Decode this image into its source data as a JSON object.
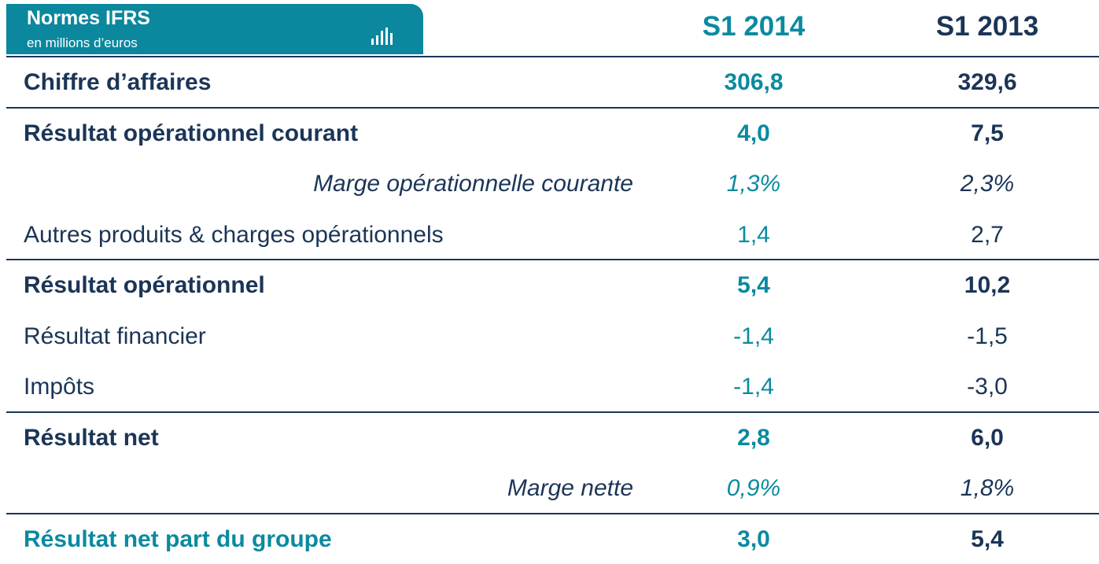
{
  "header": {
    "title": "Normes IFRS",
    "subtitle": "en millions d’euros",
    "columns": [
      "S1 2014",
      "S1 2013"
    ]
  },
  "table": {
    "rows": [
      [
        "Chiffre d’affaires",
        "306,8",
        "329,6"
      ],
      [
        "Résultat opérationnel courant",
        "4,0",
        "7,5"
      ],
      [
        "Marge opérationnelle courante",
        "1,3%",
        "2,3%"
      ],
      [
        "Autres produits & charges opérationnels",
        "1,4",
        "2,7"
      ],
      [
        "Résultat opérationnel",
        "5,4",
        "10,2"
      ],
      [
        "Résultat financier",
        "-1,4",
        "-1,5"
      ],
      [
        "Impôts",
        "-1,4",
        "-3,0"
      ],
      [
        "Résultat net",
        "2,8",
        "6,0"
      ],
      [
        "Marge nette",
        "0,9%",
        "1,8%"
      ],
      [
        "Résultat net part du groupe",
        "3,0",
        "5,4"
      ]
    ]
  }
}
